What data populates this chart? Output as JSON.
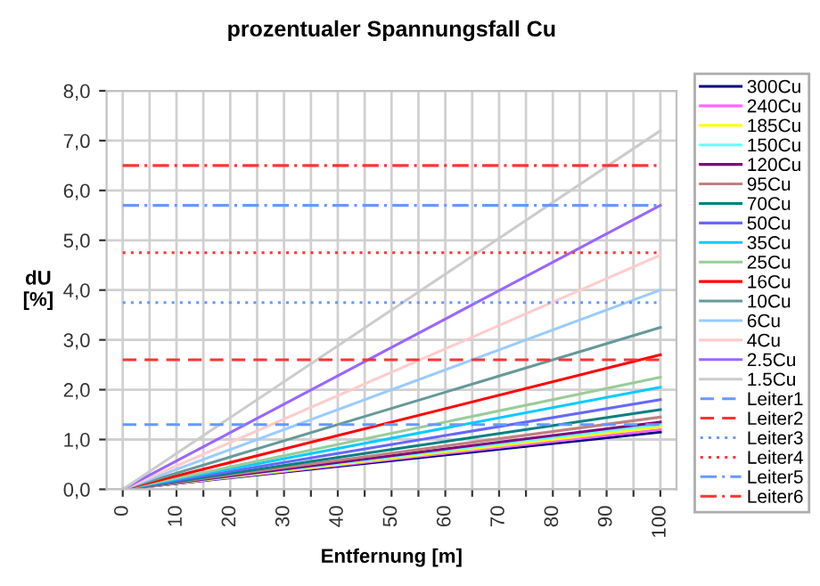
{
  "chart_data": {
    "type": "line",
    "title": "prozentualer Spannungsfall Cu",
    "xlabel": "Entfernung [m]",
    "ylabel": "dU\n[%]",
    "x": [
      0,
      100
    ],
    "xlim": [
      -3,
      103
    ],
    "xticks": [
      0,
      {
        "value": 5,
        "label": null
      },
      10,
      {
        "value": 15,
        "label": null
      },
      20,
      {
        "value": 25,
        "label": null
      },
      30,
      {
        "value": 35,
        "label": null
      },
      40,
      {
        "value": 45,
        "label": null
      },
      50,
      {
        "value": 55,
        "label": null
      },
      60,
      {
        "value": 65,
        "label": null
      },
      70,
      {
        "value": 75,
        "label": null
      },
      80,
      {
        "value": 85,
        "label": null
      },
      90,
      {
        "value": 95,
        "label": null
      },
      100
    ],
    "ylim": [
      0,
      8
    ],
    "yticks": [
      {
        "value": 0,
        "label": "0,0"
      },
      {
        "value": 1,
        "label": "1,0"
      },
      {
        "value": 2,
        "label": "2,0"
      },
      {
        "value": 3,
        "label": "3,0"
      },
      {
        "value": 4,
        "label": "4,0"
      },
      {
        "value": 5,
        "label": "5,0"
      },
      {
        "value": 6,
        "label": "6,0"
      },
      {
        "value": 7,
        "label": "7,0"
      },
      {
        "value": 8,
        "label": "8,0"
      }
    ],
    "grid": true,
    "legend": "right",
    "series": [
      {
        "name": "300Cu",
        "color": "#000080",
        "values": [
          0,
          1.15
        ]
      },
      {
        "name": "240Cu",
        "color": "#ff66ff",
        "values": [
          0,
          1.2
        ]
      },
      {
        "name": "185Cu",
        "color": "#ffff00",
        "values": [
          0,
          1.25
        ]
      },
      {
        "name": "150Cu",
        "color": "#66ffff",
        "values": [
          0,
          1.3
        ]
      },
      {
        "name": "120Cu",
        "color": "#800080",
        "values": [
          0,
          1.35
        ]
      },
      {
        "name": "95Cu",
        "color": "#c08080",
        "values": [
          0,
          1.45
        ]
      },
      {
        "name": "70Cu",
        "color": "#008080",
        "values": [
          0,
          1.6
        ]
      },
      {
        "name": "50Cu",
        "color": "#6666ff",
        "values": [
          0,
          1.8
        ]
      },
      {
        "name": "35Cu",
        "color": "#00ccff",
        "values": [
          0,
          2.05
        ]
      },
      {
        "name": "25Cu",
        "color": "#99cc99",
        "values": [
          0,
          2.25
        ]
      },
      {
        "name": "16Cu",
        "color": "#ff0000",
        "values": [
          0,
          2.7
        ]
      },
      {
        "name": "10Cu",
        "color": "#669999",
        "values": [
          0,
          3.25
        ]
      },
      {
        "name": "6Cu",
        "color": "#99ccff",
        "values": [
          0,
          4.0
        ]
      },
      {
        "name": "4Cu",
        "color": "#ffcccc",
        "values": [
          0,
          4.7
        ]
      },
      {
        "name": "2.5Cu",
        "color": "#9966ff",
        "values": [
          0,
          5.7
        ]
      },
      {
        "name": "1.5Cu",
        "color": "#cccccc",
        "values": [
          0,
          7.2
        ]
      },
      {
        "name": "Leiter1",
        "color": "#6699ff",
        "line_style": "dashed",
        "values": [
          1.3,
          1.3
        ]
      },
      {
        "name": "Leiter2",
        "color": "#ff3333",
        "line_style": "dashed",
        "values": [
          2.6,
          2.6
        ]
      },
      {
        "name": "Leiter3",
        "color": "#6699ff",
        "line_style": "dotted",
        "values": [
          3.75,
          3.75
        ]
      },
      {
        "name": "Leiter4",
        "color": "#ff3333",
        "line_style": "dotted",
        "values": [
          4.75,
          4.75
        ]
      },
      {
        "name": "Leiter5",
        "color": "#6699ff",
        "line_style": "dashdot",
        "values": [
          5.7,
          5.7
        ]
      },
      {
        "name": "Leiter6",
        "color": "#ff3333",
        "line_style": "dashdot",
        "values": [
          6.5,
          6.5
        ]
      }
    ]
  }
}
